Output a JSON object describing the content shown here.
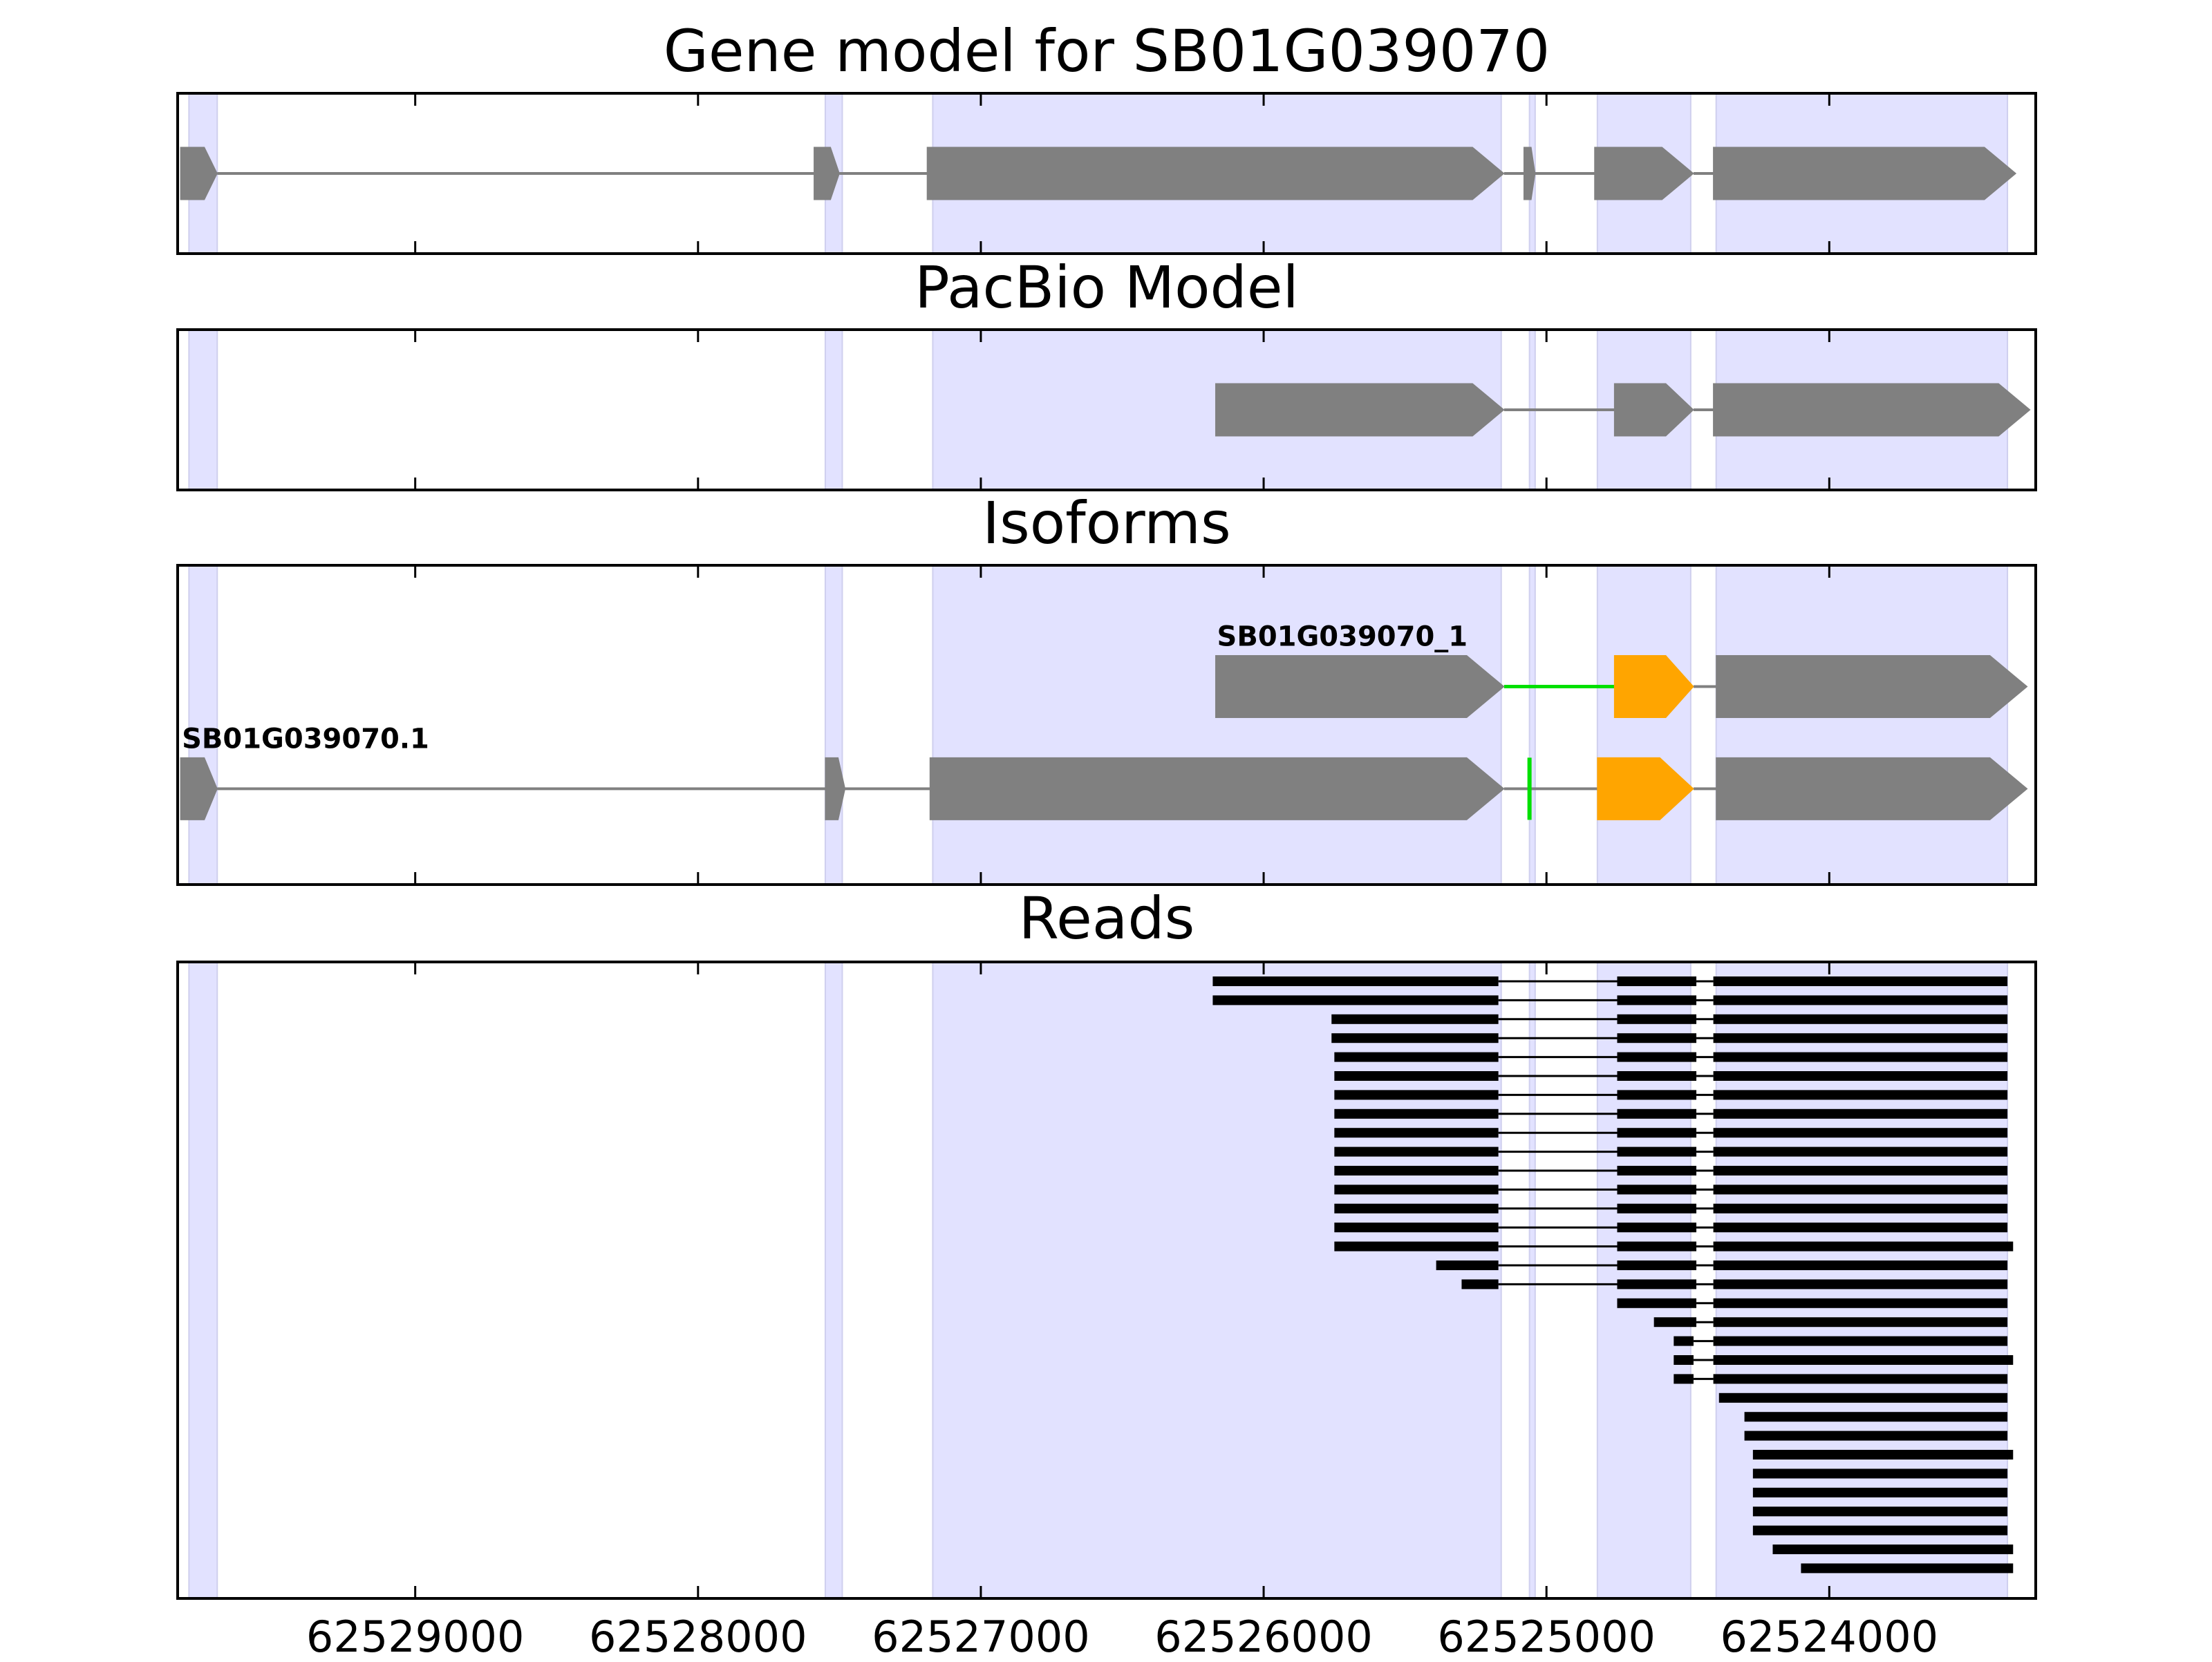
{
  "figure": {
    "background": "#ffffff"
  },
  "colors": {
    "exon": "#808080",
    "intron": "#808080",
    "highlight_exon": "#ffa500",
    "highlight_intron": "#00e000",
    "read": "#000000",
    "shade": "#e2e2ff",
    "shade_edge": "#cfcfee",
    "axis": "#000000"
  },
  "chart_data": {
    "type": "gene-track",
    "x_axis": {
      "reversed": true,
      "range": [
        62529840,
        62523270
      ],
      "ticks": [
        62529000,
        62528000,
        62527000,
        62526000,
        62525000,
        62524000
      ],
      "tick_labels": [
        "62529000",
        "62528000",
        "62527000",
        "62526000",
        "62525000",
        "62524000"
      ]
    },
    "shaded_regions": [
      [
        62529800,
        62529700
      ],
      [
        62527550,
        62527490
      ],
      [
        62527170,
        62525160
      ],
      [
        62525060,
        62525040
      ],
      [
        62524820,
        62524490
      ],
      [
        62524400,
        62523370
      ]
    ],
    "panels": [
      {
        "id": "gene-model",
        "title": "Gene model for SB01G039070",
        "tracks": [
          {
            "label": "",
            "y": 0.5,
            "exons": [
              [
                62529830,
                62529700
              ],
              [
                62527590,
                62527500
              ],
              [
                62527190,
                62525150
              ],
              [
                62525080,
                62525040
              ],
              [
                62524830,
                62524480
              ],
              [
                62524410,
                62523340
              ]
            ],
            "highlight_exons": [],
            "highlight_introns": []
          }
        ]
      },
      {
        "id": "pacbio-model",
        "title": "PacBio Model",
        "tracks": [
          {
            "label": "",
            "y": 0.5,
            "exons": [
              [
                62526170,
                62525150
              ],
              [
                62524760,
                62524480
              ],
              [
                62524410,
                62523290
              ]
            ],
            "highlight_exons": [],
            "highlight_introns": []
          }
        ]
      },
      {
        "id": "isoforms",
        "title": "Isoforms",
        "tracks": [
          {
            "label": "SB01G039070_1",
            "y": 0.62,
            "exons": [
              [
                62526170,
                62525150
              ],
              [
                62524760,
                62524480
              ],
              [
                62524400,
                62523300
              ]
            ],
            "highlight_exons": [
              1
            ],
            "highlight_introns": [
              0
            ]
          },
          {
            "label": "SB01G039070.1",
            "y": 0.3,
            "exons": [
              [
                62529830,
                62529700
              ],
              [
                62527550,
                62527480
              ],
              [
                62527180,
                62525150
              ],
              [
                62525060,
                62525055
              ],
              [
                62524820,
                62524480
              ],
              [
                62524400,
                62523300
              ]
            ],
            "highlight_exons": [
              4
            ],
            "highlight_introns": [],
            "highlight_marks": [
              3
            ]
          }
        ]
      },
      {
        "id": "reads",
        "title": "Reads",
        "read_exon_ranges": [
          [
            [
              62526180,
              62525170
            ],
            [
              62524750,
              62524470
            ],
            [
              62524410,
              62523370
            ]
          ],
          [
            [
              62526180,
              62525170
            ],
            [
              62524750,
              62524470
            ],
            [
              62524410,
              62523370
            ]
          ],
          [
            [
              62525760,
              62525170
            ],
            [
              62524750,
              62524470
            ],
            [
              62524410,
              62523370
            ]
          ],
          [
            [
              62525760,
              62525170
            ],
            [
              62524750,
              62524470
            ],
            [
              62524410,
              62523370
            ]
          ],
          [
            [
              62525750,
              62525170
            ],
            [
              62524750,
              62524470
            ],
            [
              62524410,
              62523370
            ]
          ],
          [
            [
              62525750,
              62525170
            ],
            [
              62524750,
              62524470
            ],
            [
              62524410,
              62523370
            ]
          ],
          [
            [
              62525750,
              62525170
            ],
            [
              62524750,
              62524470
            ],
            [
              62524410,
              62523370
            ]
          ],
          [
            [
              62525750,
              62525170
            ],
            [
              62524750,
              62524470
            ],
            [
              62524410,
              62523370
            ]
          ],
          [
            [
              62525750,
              62525170
            ],
            [
              62524750,
              62524470
            ],
            [
              62524410,
              62523370
            ]
          ],
          [
            [
              62525750,
              62525170
            ],
            [
              62524750,
              62524470
            ],
            [
              62524410,
              62523370
            ]
          ],
          [
            [
              62525750,
              62525170
            ],
            [
              62524750,
              62524470
            ],
            [
              62524410,
              62523370
            ]
          ],
          [
            [
              62525750,
              62525170
            ],
            [
              62524750,
              62524470
            ],
            [
              62524410,
              62523370
            ]
          ],
          [
            [
              62525750,
              62525170
            ],
            [
              62524750,
              62524470
            ],
            [
              62524410,
              62523370
            ]
          ],
          [
            [
              62525750,
              62525170
            ],
            [
              62524750,
              62524470
            ],
            [
              62524410,
              62523370
            ]
          ],
          [
            [
              62525750,
              62525170
            ],
            [
              62524750,
              62524470
            ],
            [
              62524410,
              62523350
            ]
          ],
          [
            [
              62525390,
              62525170
            ],
            [
              62524750,
              62524470
            ],
            [
              62524410,
              62523370
            ]
          ],
          [
            [
              62525300,
              62525170
            ],
            [
              62524750,
              62524470
            ],
            [
              62524410,
              62523370
            ]
          ],
          [
            [
              62524750,
              62524470
            ],
            [
              62524410,
              62523370
            ]
          ],
          [
            [
              62524620,
              62524470
            ],
            [
              62524410,
              62523370
            ]
          ],
          [
            [
              62524550,
              62524480
            ],
            [
              62524410,
              62523370
            ]
          ],
          [
            [
              62524550,
              62524480
            ],
            [
              62524410,
              62523350
            ]
          ],
          [
            [
              62524550,
              62524480
            ],
            [
              62524410,
              62523370
            ]
          ],
          [
            [
              62524390,
              62523370
            ]
          ],
          [
            [
              62524300,
              62523370
            ]
          ],
          [
            [
              62524300,
              62523370
            ]
          ],
          [
            [
              62524270,
              62523350
            ]
          ],
          [
            [
              62524270,
              62523370
            ]
          ],
          [
            [
              62524270,
              62523370
            ]
          ],
          [
            [
              62524270,
              62523370
            ]
          ],
          [
            [
              62524270,
              62523370
            ]
          ],
          [
            [
              62524200,
              62523350
            ]
          ],
          [
            [
              62524100,
              62523350
            ]
          ]
        ]
      }
    ]
  }
}
